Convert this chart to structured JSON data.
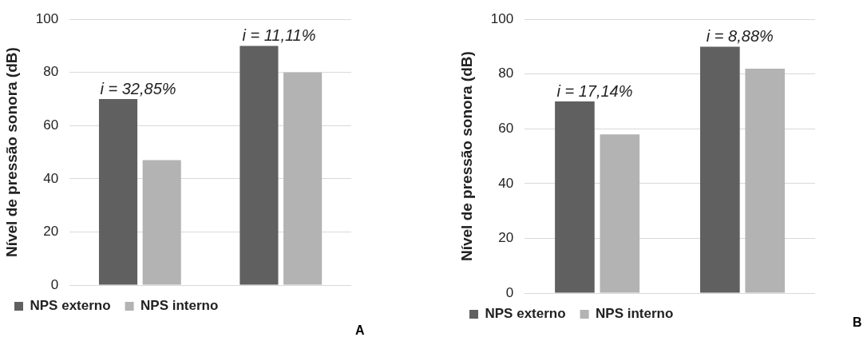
{
  "chart_data": [
    {
      "type": "bar",
      "ylabel": "Nível de pressão sonora (dB)",
      "categories": [
        null,
        null
      ],
      "series": [
        {
          "name": "NPS externo",
          "color": "#606060",
          "values": [
            70,
            90
          ]
        },
        {
          "name": "NPS interno",
          "color": "#b3b3b3",
          "values": [
            47,
            80
          ]
        }
      ],
      "ylim": [
        0,
        100
      ],
      "yticks": [
        0,
        20,
        40,
        60,
        80,
        100
      ],
      "grid": "y",
      "legend": "bottom",
      "annotations": [
        "i = 32,85%",
        "i = 11,11%",
        "A"
      ]
    },
    {
      "type": "bar",
      "ylabel": "Nível de pressão sonora (dB)",
      "categories": [
        null,
        null
      ],
      "series": [
        {
          "name": "NPS externo",
          "color": "#606060",
          "values": [
            70,
            90
          ]
        },
        {
          "name": "NPS interno",
          "color": "#b3b3b3",
          "values": [
            58,
            82
          ]
        }
      ],
      "ylim": [
        0,
        100
      ],
      "yticks": [
        0,
        20,
        40,
        60,
        80,
        100
      ],
      "grid": "y",
      "legend": "bottom",
      "annotations": [
        "i = 17,14%",
        "i = 8,88%",
        "B"
      ]
    }
  ]
}
